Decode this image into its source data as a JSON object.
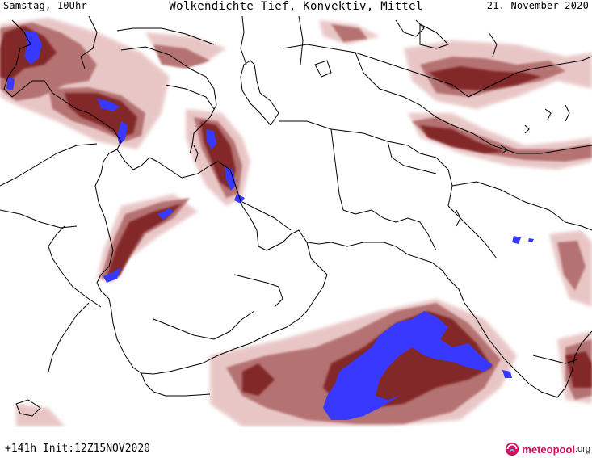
{
  "header": {
    "day_time": "Samstag, 10Uhr",
    "title": "Wolkendichte   Tief, Konvektiv, Mittel",
    "date": "21. November 2020"
  },
  "footer": {
    "forecast_info": "+141h Init:12Z15NOV2020",
    "logo_name": "meteopool",
    "logo_tld": ".org"
  },
  "legend_colors": {
    "low_density": "#e8c4c4",
    "medium_density": "#b06a6a",
    "high_density": "#7a1a1a",
    "very_high_density": "#3838ff",
    "coastline": "#000000",
    "borders": "#000000"
  }
}
